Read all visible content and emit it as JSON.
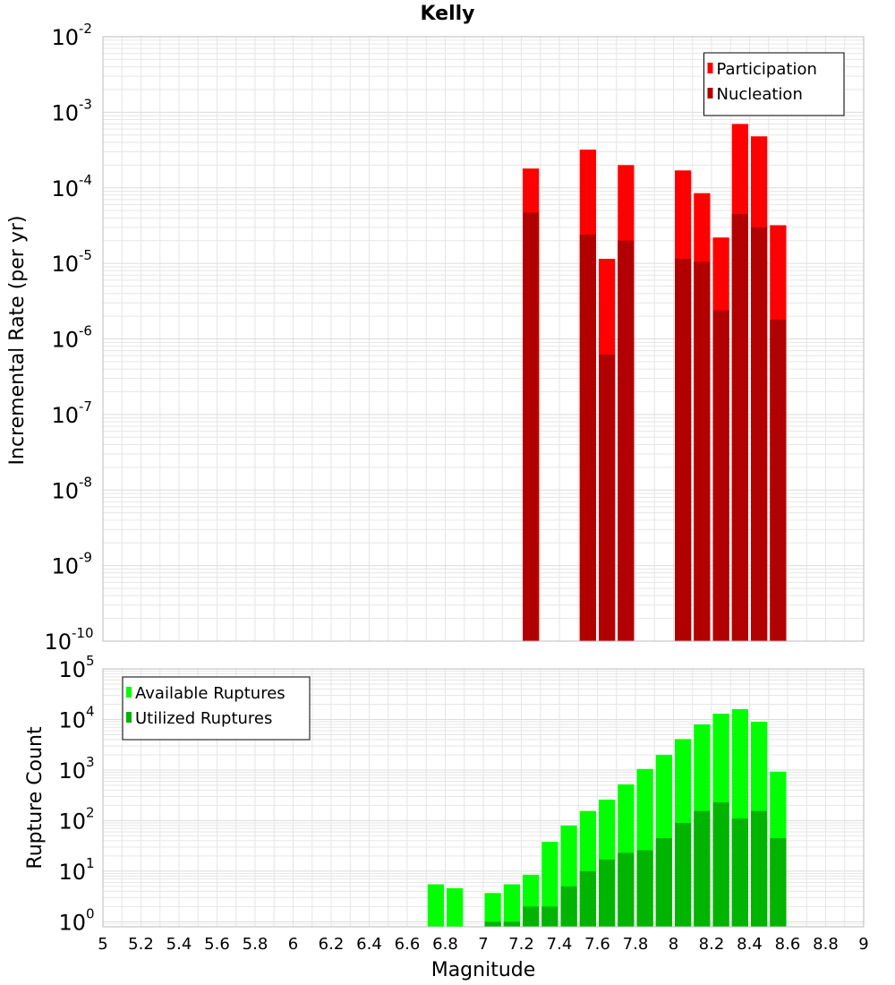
{
  "title": "Kelly",
  "xlabel": "Magnitude",
  "colors": {
    "participation": "#ff0000",
    "nucleation": "#b20000",
    "available": "#00ff00",
    "utilized": "#00b400",
    "grid": "#e6e6e6",
    "frame": "#bbbbbb"
  },
  "chart_data": [
    {
      "type": "bar",
      "ylabel": "Incremental Rate (per yr)",
      "scale": "log",
      "xlim": [
        5,
        9
      ],
      "ylim_exp": [
        -10,
        -2
      ],
      "yticks": [
        {
          "base": "10",
          "exp": "-2"
        },
        {
          "base": "10",
          "exp": "-3"
        },
        {
          "base": "10",
          "exp": "-4"
        },
        {
          "base": "10",
          "exp": "-5"
        },
        {
          "base": "10",
          "exp": "-6"
        },
        {
          "base": "10",
          "exp": "-7"
        },
        {
          "base": "10",
          "exp": "-8"
        },
        {
          "base": "10",
          "exp": "-9"
        },
        {
          "base": "10",
          "exp": "-10"
        }
      ],
      "legend_position": "top-right",
      "bar_width": 0.1,
      "series": [
        {
          "name": "Participation",
          "color_key": "participation",
          "x": [
            7.25,
            7.55,
            7.65,
            7.75,
            8.05,
            8.15,
            8.25,
            8.35,
            8.45,
            8.55
          ],
          "values": [
            0.00018,
            0.00032,
            1.15e-05,
            0.0002,
            0.00017,
            8.5e-05,
            2.2e-05,
            0.0007,
            0.00048,
            3.2e-05
          ]
        },
        {
          "name": "Nucleation",
          "color_key": "nucleation",
          "x": [
            7.25,
            7.55,
            7.65,
            7.75,
            8.05,
            8.15,
            8.25,
            8.35,
            8.45,
            8.55
          ],
          "values": [
            4.7e-05,
            2.4e-05,
            6.2e-07,
            2e-05,
            1.15e-05,
            1.05e-05,
            2.4e-06,
            4.5e-05,
            3e-05,
            1.8e-06
          ]
        }
      ]
    },
    {
      "type": "bar",
      "ylabel": "Rupture Count",
      "scale": "log",
      "xlim": [
        5,
        9
      ],
      "ylim_exp": [
        -0.1,
        5
      ],
      "yticks": [
        {
          "base": "10",
          "exp": "5"
        },
        {
          "base": "10",
          "exp": "4"
        },
        {
          "base": "10",
          "exp": "3"
        },
        {
          "base": "10",
          "exp": "2"
        },
        {
          "base": "10",
          "exp": "1"
        },
        {
          "base": "10",
          "exp": "0"
        }
      ],
      "legend_position": "top-left",
      "bar_width": 0.1,
      "series": [
        {
          "name": "Available Ruptures",
          "color_key": "available",
          "x": [
            6.75,
            6.85,
            7.05,
            7.15,
            7.25,
            7.35,
            7.45,
            7.55,
            7.65,
            7.75,
            7.85,
            7.95,
            8.05,
            8.15,
            8.25,
            8.35,
            8.45,
            8.55
          ],
          "values": [
            5.5,
            4.6,
            3.7,
            5.5,
            8.5,
            38,
            80,
            155,
            260,
            520,
            1050,
            2000,
            4100,
            8000,
            13000,
            16000,
            9000,
            930
          ]
        },
        {
          "name": "Utilized Ruptures",
          "color_key": "utilized",
          "x": [
            7.05,
            7.15,
            7.25,
            7.35,
            7.45,
            7.55,
            7.65,
            7.75,
            7.85,
            7.95,
            8.05,
            8.15,
            8.25,
            8.35,
            8.45,
            8.55
          ],
          "values": [
            1,
            1,
            2,
            2,
            5,
            10,
            17,
            23,
            26,
            45,
            90,
            155,
            230,
            110,
            155,
            45
          ]
        }
      ]
    }
  ],
  "xticks": [
    "5",
    "5.2",
    "5.4",
    "5.6",
    "5.8",
    "6",
    "6.2",
    "6.4",
    "6.6",
    "6.8",
    "7",
    "7.2",
    "7.4",
    "7.6",
    "7.8",
    "8",
    "8.2",
    "8.4",
    "8.6",
    "8.8",
    "9"
  ]
}
